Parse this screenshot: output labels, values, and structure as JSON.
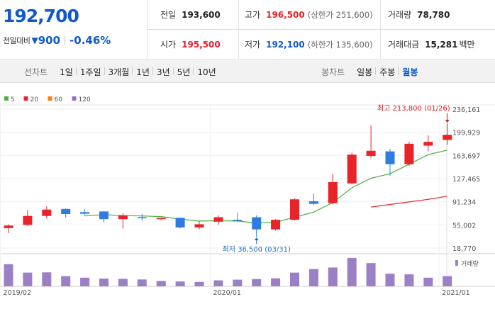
{
  "quote": {
    "price": "192,700",
    "change_label": "전일대비",
    "change_value": "900",
    "change_pct": "-0.46%",
    "prev_close_label": "전일",
    "prev_close": "193,600",
    "high_label": "고가",
    "high": "196,500",
    "upper_limit": "(상한가 251,600)",
    "volume_label": "거래량",
    "volume": "78,780",
    "open_label": "시가",
    "open": "195,500",
    "low_label": "저가",
    "low": "192,100",
    "lower_limit": "(하한가 135,600)",
    "amount_label": "거래대금",
    "amount": "15,281",
    "amount_unit": "백만"
  },
  "toolbar": {
    "line_label": "선차트",
    "line_options": [
      "1일",
      "1주일",
      "3개월",
      "1년",
      "3년",
      "5년",
      "10년"
    ],
    "candle_label": "봉차트",
    "candle_options": [
      "일봉",
      "주봉",
      "월봉"
    ],
    "candle_active": "월봉"
  },
  "chart_data": {
    "type": "candlestick",
    "legend": [
      "5",
      "20",
      "60",
      "120"
    ],
    "legend_colors": [
      "#4cae3c",
      "#e8232a",
      "#ff7f00",
      "#9b6bc3"
    ],
    "up_color": "#e8232a",
    "down_color": "#2f7be0",
    "y_ticks": [
      "236,161",
      "199,929",
      "163,697",
      "127,465",
      "91,234",
      "55,002",
      "18,770"
    ],
    "y_tick_values": [
      236161,
      199929,
      163697,
      127465,
      91234,
      55002,
      18770
    ],
    "ylim": [
      18770,
      236161
    ],
    "x_ticks": [
      "2019/02",
      "2020/01",
      "2021/01"
    ],
    "x_tick_index": [
      0,
      11,
      23
    ],
    "candles": [
      {
        "o": 50000,
        "h": 56000,
        "l": 42000,
        "c": 54000
      },
      {
        "o": 55000,
        "h": 78000,
        "l": 53000,
        "c": 69000
      },
      {
        "o": 69000,
        "h": 84000,
        "l": 65000,
        "c": 79000
      },
      {
        "o": 80000,
        "h": 81000,
        "l": 66000,
        "c": 72000
      },
      {
        "o": 75000,
        "h": 80000,
        "l": 70000,
        "c": 72500
      },
      {
        "o": 76000,
        "h": 77000,
        "l": 59000,
        "c": 64000
      },
      {
        "o": 64000,
        "h": 73000,
        "l": 49000,
        "c": 70000
      },
      {
        "o": 67000,
        "h": 72000,
        "l": 62000,
        "c": 66000
      },
      {
        "o": 64000,
        "h": 66000,
        "l": 62000,
        "c": 66000
      },
      {
        "o": 66000,
        "h": 66500,
        "l": 50000,
        "c": 51000
      },
      {
        "o": 51000,
        "h": 61000,
        "l": 48000,
        "c": 56000
      },
      {
        "o": 60000,
        "h": 70000,
        "l": 55000,
        "c": 67000
      },
      {
        "o": 63000,
        "h": 74000,
        "l": 60000,
        "c": 62000
      },
      {
        "o": 67000,
        "h": 70000,
        "l": 36500,
        "c": 48000
      },
      {
        "o": 48000,
        "h": 64000,
        "l": 46000,
        "c": 63000
      },
      {
        "o": 63000,
        "h": 97000,
        "l": 62000,
        "c": 95000
      },
      {
        "o": 92000,
        "h": 104000,
        "l": 86000,
        "c": 88000
      },
      {
        "o": 89000,
        "h": 135000,
        "l": 87000,
        "c": 122000
      },
      {
        "o": 120000,
        "h": 168000,
        "l": 118000,
        "c": 165000
      },
      {
        "o": 163000,
        "h": 211000,
        "l": 159000,
        "c": 171000
      },
      {
        "o": 170000,
        "h": 174000,
        "l": 132000,
        "c": 150000
      },
      {
        "o": 150000,
        "h": 185000,
        "l": 147000,
        "c": 182000
      },
      {
        "o": 179000,
        "h": 195000,
        "l": 170000,
        "c": 185000
      },
      {
        "o": 188000,
        "h": 213800,
        "l": 180000,
        "c": 196000
      }
    ],
    "ma5": [
      null,
      null,
      null,
      null,
      69000,
      71000,
      69500,
      69000,
      68000,
      64000,
      61000,
      61500,
      61000,
      58000,
      59000,
      67000,
      75000,
      90000,
      113000,
      128000,
      135000,
      150000,
      165000,
      172000
    ],
    "ma20": [
      null,
      null,
      null,
      null,
      null,
      null,
      null,
      null,
      null,
      null,
      null,
      null,
      null,
      null,
      null,
      null,
      null,
      null,
      null,
      83000,
      87000,
      91000,
      95000,
      100000
    ],
    "volume": [
      100,
      62,
      63,
      46,
      39,
      35,
      34,
      31,
      24,
      22,
      20,
      27,
      30,
      33,
      36,
      62,
      78,
      85,
      128,
      105,
      57,
      54,
      39,
      46
    ],
    "volume_label": "거래량",
    "max_annotation": "최고 213,800 (01/26)",
    "min_annotation": "최저 36,500 (03/31)",
    "max_index": 23,
    "min_index": 13,
    "max_value": 213800,
    "min_value": 36500
  }
}
